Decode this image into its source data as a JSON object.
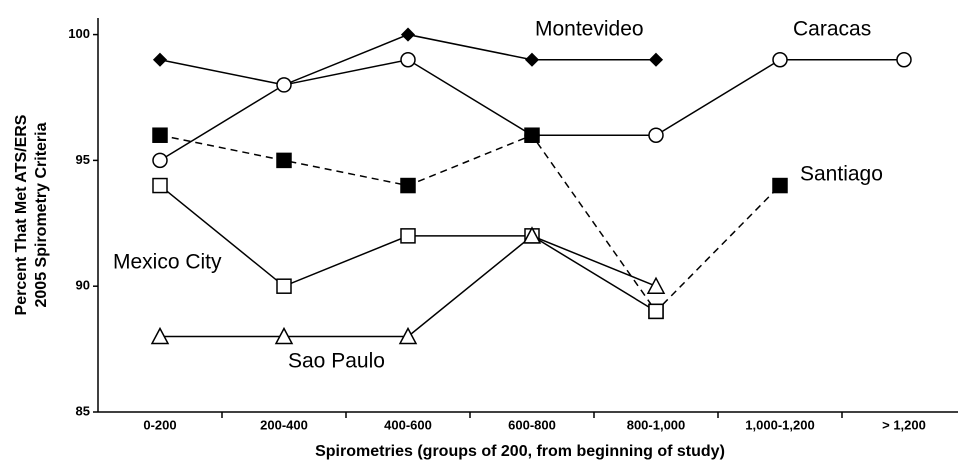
{
  "chart_data": {
    "type": "line",
    "x_label": "Spirometries (groups of 200, from beginning of study)",
    "y_label": [
      "Percent That Met ATS/ERS",
      "2005 Spirometry Criteria"
    ],
    "categories": [
      "0-200",
      "200-400",
      "400-600",
      "600-800",
      "800-1,000",
      "1,000-1,200",
      "> 1,200"
    ],
    "ylim": [
      85,
      100.5
    ],
    "yticks": [
      85,
      90,
      95,
      100
    ],
    "grid": false,
    "series": [
      {
        "name": "Montevideo",
        "color": "#000000",
        "marker": "diamond",
        "filled": true,
        "dashed": false,
        "values": [
          99,
          98,
          100,
          99,
          99,
          null,
          null
        ]
      },
      {
        "name": "Caracas",
        "color": "#000000",
        "marker": "circle",
        "filled": false,
        "dashed": false,
        "values": [
          95,
          98,
          99,
          96,
          96,
          99,
          99
        ]
      },
      {
        "name": "Santiago",
        "color": "#000000",
        "marker": "square",
        "filled": true,
        "dashed": true,
        "values": [
          96,
          95,
          94,
          96,
          89,
          94,
          null
        ]
      },
      {
        "name": "Mexico City",
        "color": "#000000",
        "marker": "square",
        "filled": false,
        "dashed": false,
        "values": [
          94,
          90,
          92,
          92,
          89,
          null,
          null
        ]
      },
      {
        "name": "Sao Paulo",
        "color": "#000000",
        "marker": "triangle",
        "filled": false,
        "dashed": false,
        "values": [
          88,
          88,
          88,
          92,
          90,
          null,
          null
        ]
      }
    ]
  }
}
